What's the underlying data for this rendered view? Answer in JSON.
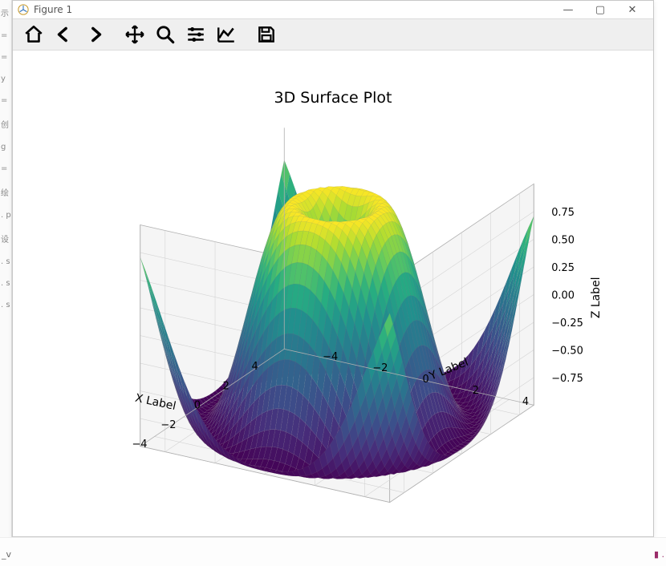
{
  "window": {
    "title": "Figure 1",
    "buttons": {
      "minimize": "—",
      "maximize": "▢",
      "close": "✕"
    }
  },
  "toolbar": {
    "home": {
      "name": "home-icon"
    },
    "back": {
      "name": "back-icon"
    },
    "forward": {
      "name": "forward-icon"
    },
    "pan": {
      "name": "pan-icon"
    },
    "zoom": {
      "name": "zoom-icon"
    },
    "configure": {
      "name": "configure-subplots-icon"
    },
    "edit": {
      "name": "axis-edit-icon"
    },
    "save": {
      "name": "save-icon"
    }
  },
  "plot": {
    "type": "3d-surface",
    "title": "3D Surface Plot",
    "title_fontsize": 19,
    "function": "sin(sqrt(x^2 + y^2))",
    "colormap": "viridis",
    "colormap_stops": [
      {
        "t": 0.0,
        "c": "#440154"
      },
      {
        "t": 0.15,
        "c": "#472c7a"
      },
      {
        "t": 0.3,
        "c": "#3b518b"
      },
      {
        "t": 0.45,
        "c": "#2c718e"
      },
      {
        "t": 0.6,
        "c": "#21908d"
      },
      {
        "t": 0.72,
        "c": "#27ad81"
      },
      {
        "t": 0.82,
        "c": "#5cc863"
      },
      {
        "t": 0.92,
        "c": "#aadc32"
      },
      {
        "t": 1.0,
        "c": "#fde725"
      }
    ],
    "background_color": "#ffffff",
    "pane_color": "#f5f5f5",
    "grid_color": "#b0b0b0",
    "wire_color": "#888888",
    "wire_alpha": 0.25,
    "x": {
      "label": "X Label",
      "lim": [
        -5,
        5
      ],
      "ticks": [
        -4,
        -2,
        0,
        2,
        4
      ]
    },
    "y": {
      "label": "Y Label",
      "lim": [
        -5,
        5
      ],
      "ticks": [
        -4,
        -2,
        0,
        2,
        4
      ]
    },
    "z": {
      "label": "Z Label",
      "lim": [
        -1,
        1
      ],
      "ticks": [
        -0.75,
        -0.5,
        -0.25,
        0.0,
        0.25,
        0.5,
        0.75
      ],
      "tick_labels": [
        "−0.75",
        "−0.50",
        "−0.25",
        "0.00",
        "0.25",
        "0.50",
        "0.75"
      ]
    },
    "view": {
      "elev": 30,
      "azim": -60
    },
    "tick_fontsize": 13,
    "label_fontsize": 14
  },
  "editor_gutter": [
    "示",
    "=",
    "=",
    "y",
    "=",
    "创",
    "g",
    " =",
    "绘",
    ". p",
    "设",
    ". s",
    ". s",
    ". s"
  ],
  "bottom": {
    "left_hint": "_v",
    "right_hint": "▮ ."
  }
}
